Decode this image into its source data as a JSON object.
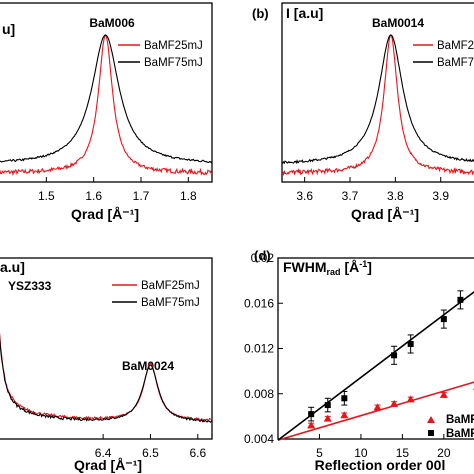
{
  "chart_data": [
    {
      "panel": "(a)",
      "type": "line",
      "ylabel": "u]",
      "xlabel": "Qrad [Å⁻¹]",
      "xlim": [
        1.4,
        1.85
      ],
      "xticks": [
        "1.5",
        "1.6",
        "1.7",
        "1.8"
      ],
      "xtick_values": [
        1.5,
        1.6,
        1.7,
        1.8
      ],
      "annotations": [
        {
          "text": "BaM006"
        }
      ],
      "legend_position": "top-right",
      "series": [
        {
          "name": "BaMF25mJ",
          "color": "#e8141c",
          "peak": 1.625,
          "gamma": 0.018,
          "base": 0.02,
          "noise": 0.035,
          "ymin": 0.0
        },
        {
          "name": "BaMF75mJ",
          "color": "#000000",
          "peak": 1.625,
          "gamma": 0.035,
          "base": 0.08,
          "noise": 0.02,
          "ymin": 0.0
        }
      ]
    },
    {
      "panel": "(b)",
      "type": "line",
      "ylabel": "I [a.u]",
      "xlabel": "Qrad [Å⁻¹]",
      "xlim": [
        3.55,
        3.98
      ],
      "xticks": [
        "3.6",
        "3.7",
        "3.8",
        "3.9"
      ],
      "xtick_values": [
        3.6,
        3.7,
        3.8,
        3.9
      ],
      "annotations": [
        {
          "text": "BaM0014"
        }
      ],
      "legend_position": "top-right",
      "series": [
        {
          "name": "BaMF25mJ",
          "color": "#e8141c",
          "peak": 3.79,
          "gamma": 0.018,
          "base": 0.02,
          "noise": 0.035,
          "ymin": 0.0
        },
        {
          "name": "BaMF75mJ",
          "color": "#000000",
          "peak": 3.79,
          "gamma": 0.032,
          "base": 0.08,
          "noise": 0.02,
          "ymin": 0.0
        }
      ]
    },
    {
      "panel": "(c)",
      "type": "line",
      "ylabel": "a.u]",
      "xlabel": "Qrad [Å⁻¹]",
      "xlim": [
        6.18,
        6.63
      ],
      "xticks": [
        "6.4",
        "6.5",
        "6.6"
      ],
      "xtick_values": [
        6.4,
        6.5,
        6.6
      ],
      "annotations": [
        {
          "text": "YSZ333"
        },
        {
          "text": "BaM0024"
        }
      ],
      "legend_position": "top-right",
      "series": [
        {
          "name": "BaMF25mJ",
          "color": "#e8141c",
          "peak": 6.5,
          "gamma": 0.018,
          "ysz": 6.17,
          "yszw": 0.012,
          "base": 0.14,
          "noise": 0.02,
          "ymin": 0.0
        },
        {
          "name": "BaMF75mJ",
          "color": "#000000",
          "peak": 6.5,
          "gamma": 0.02,
          "ysz": 6.17,
          "yszw": 0.012,
          "base": 0.12,
          "noise": 0.02,
          "ymin": 0.0
        }
      ]
    },
    {
      "panel": "(d)",
      "type": "scatter",
      "ylabel": "FWHMrad [Å⁻¹]",
      "xlabel": "Reflection order 00l",
      "xlim": [
        0,
        24
      ],
      "ylim": [
        0.004,
        0.02
      ],
      "xticks": [
        "5",
        "10",
        "15",
        "20"
      ],
      "xtick_values": [
        5,
        10,
        15,
        20
      ],
      "yticks": [
        "0.004",
        "0.008",
        "0.012",
        "0.016",
        "0.02"
      ],
      "ytick_values": [
        0.004,
        0.008,
        0.012,
        0.016,
        0.02
      ],
      "legend_position": "bottom-right",
      "series": [
        {
          "name": "BaMF",
          "marker": "triangle",
          "color": "#e8141c",
          "x": [
            4,
            6,
            8,
            12,
            14,
            16,
            20,
            24
          ],
          "y": [
            0.0052,
            0.0058,
            0.0061,
            0.0068,
            0.0071,
            0.0075,
            0.0079,
            0.0086
          ],
          "err": [
            0.0002,
            0.0002,
            0.0002,
            0.0002,
            0.0002,
            0.0002,
            0.0002,
            0.0002
          ],
          "fit": [
            0.0039,
            0.0091
          ]
        },
        {
          "name": "BaMF",
          "marker": "square",
          "color": "#000000",
          "x": [
            4,
            6,
            8,
            14,
            16,
            20,
            22
          ],
          "y": [
            0.0062,
            0.007,
            0.0076,
            0.0114,
            0.0124,
            0.0146,
            0.0163
          ],
          "err": [
            0.0006,
            0.0006,
            0.0006,
            0.0008,
            0.0008,
            0.0008,
            0.0008
          ],
          "fit": [
            0.0039,
            0.0172
          ]
        }
      ]
    }
  ]
}
